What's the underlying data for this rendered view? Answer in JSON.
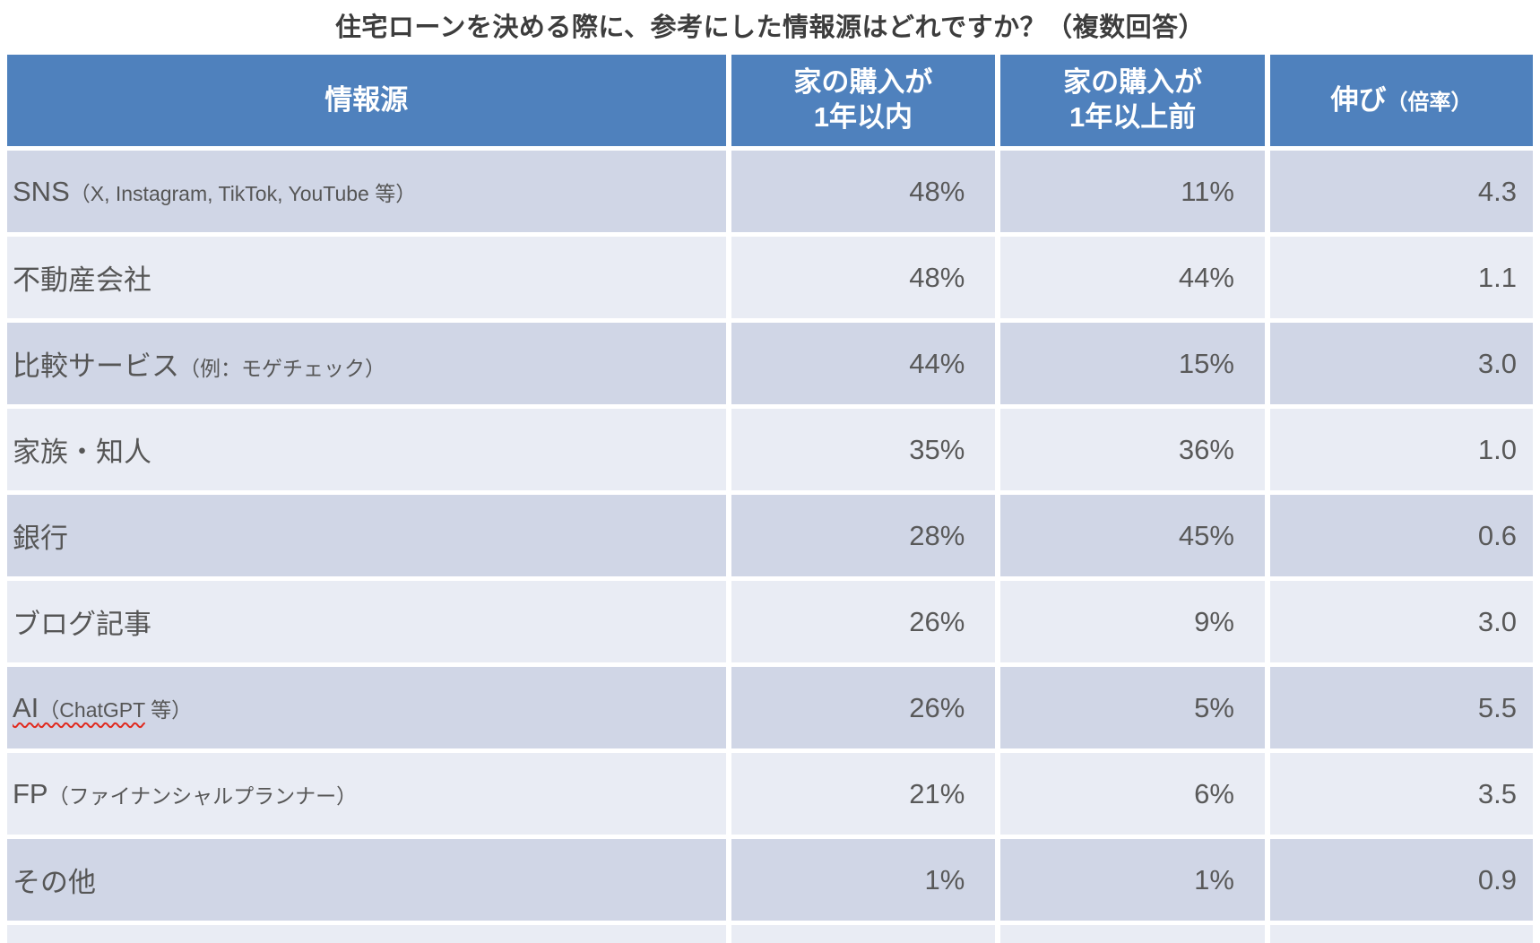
{
  "title": "住宅ローンを決める際に、参考にした情報源はどれですか？（複数回答）",
  "colors": {
    "header_blue": "#4f81bd",
    "row_band_dark": "#d0d6e6",
    "row_band_light": "#e9ecf4",
    "header_text": "#ffffff",
    "body_text": "#595959",
    "title_text": "#3d3d3d",
    "spellcheck_red": "#e02b20"
  },
  "table": {
    "headers": {
      "source": "情報源",
      "recent_line1": "家の購入が",
      "recent_line2": "1年以内",
      "earlier_line1": "家の購入が",
      "earlier_line2": "1年以上前",
      "growth_main": "伸び",
      "growth_sub": "（倍率）"
    },
    "rows": [
      {
        "label_main": "SNS",
        "label_sub": "（X, Instagram, TikTok, YouTube 等）",
        "recent": "48%",
        "earlier": "11%",
        "growth": "4.3"
      },
      {
        "label_main": "不動産会社",
        "label_sub": "",
        "recent": "48%",
        "earlier": "44%",
        "growth": "1.1"
      },
      {
        "label_main": "比較サービス",
        "label_sub": "（例：モゲチェック）",
        "recent": "44%",
        "earlier": "15%",
        "growth": "3.0"
      },
      {
        "label_main": "家族・知人",
        "label_sub": "",
        "recent": "35%",
        "earlier": "36%",
        "growth": "1.0"
      },
      {
        "label_main": "銀行",
        "label_sub": "",
        "recent": "28%",
        "earlier": "45%",
        "growth": "0.6"
      },
      {
        "label_main": "ブログ記事",
        "label_sub": "",
        "recent": "26%",
        "earlier": "9%",
        "growth": "3.0"
      },
      {
        "label_main": "AI",
        "label_sub_flagged": "（ChatGPT",
        "label_sub_rest": " 等）",
        "recent": "26%",
        "earlier": "5%",
        "growth": "5.5"
      },
      {
        "label_main": "FP",
        "label_sub": "（ファイナンシャルプランナー）",
        "recent": "21%",
        "earlier": "6%",
        "growth": "3.5"
      },
      {
        "label_main": "その他",
        "label_sub": "",
        "recent": "1%",
        "earlier": "1%",
        "growth": "0.9"
      }
    ]
  },
  "chart_data": {
    "type": "table",
    "title": "住宅ローンを決める際に、参考にした情報源はどれですか？（複数回答）",
    "columns": [
      "情報源",
      "家の購入が1年以内",
      "家の購入が1年以上前",
      "伸び（倍率）"
    ],
    "rows": [
      [
        "SNS（X, Instagram, TikTok, YouTube 等）",
        "48%",
        "11%",
        4.3
      ],
      [
        "不動産会社",
        "48%",
        "44%",
        1.1
      ],
      [
        "比較サービス（例：モゲチェック）",
        "44%",
        "15%",
        3.0
      ],
      [
        "家族・知人",
        "35%",
        "36%",
        1.0
      ],
      [
        "銀行",
        "28%",
        "45%",
        0.6
      ],
      [
        "ブログ記事",
        "26%",
        "9%",
        3.0
      ],
      [
        "AI（ChatGPT 等）",
        "26%",
        "5%",
        5.5
      ],
      [
        "FP（ファイナンシャルプランナー）",
        "21%",
        "6%",
        3.5
      ],
      [
        "その他",
        "1%",
        "1%",
        0.9
      ]
    ],
    "notes": "banded-row table, header row blue #4f81bd, values right-aligned, multiple-answer survey comparing home purchase within 1 year vs more than 1 year ago"
  }
}
